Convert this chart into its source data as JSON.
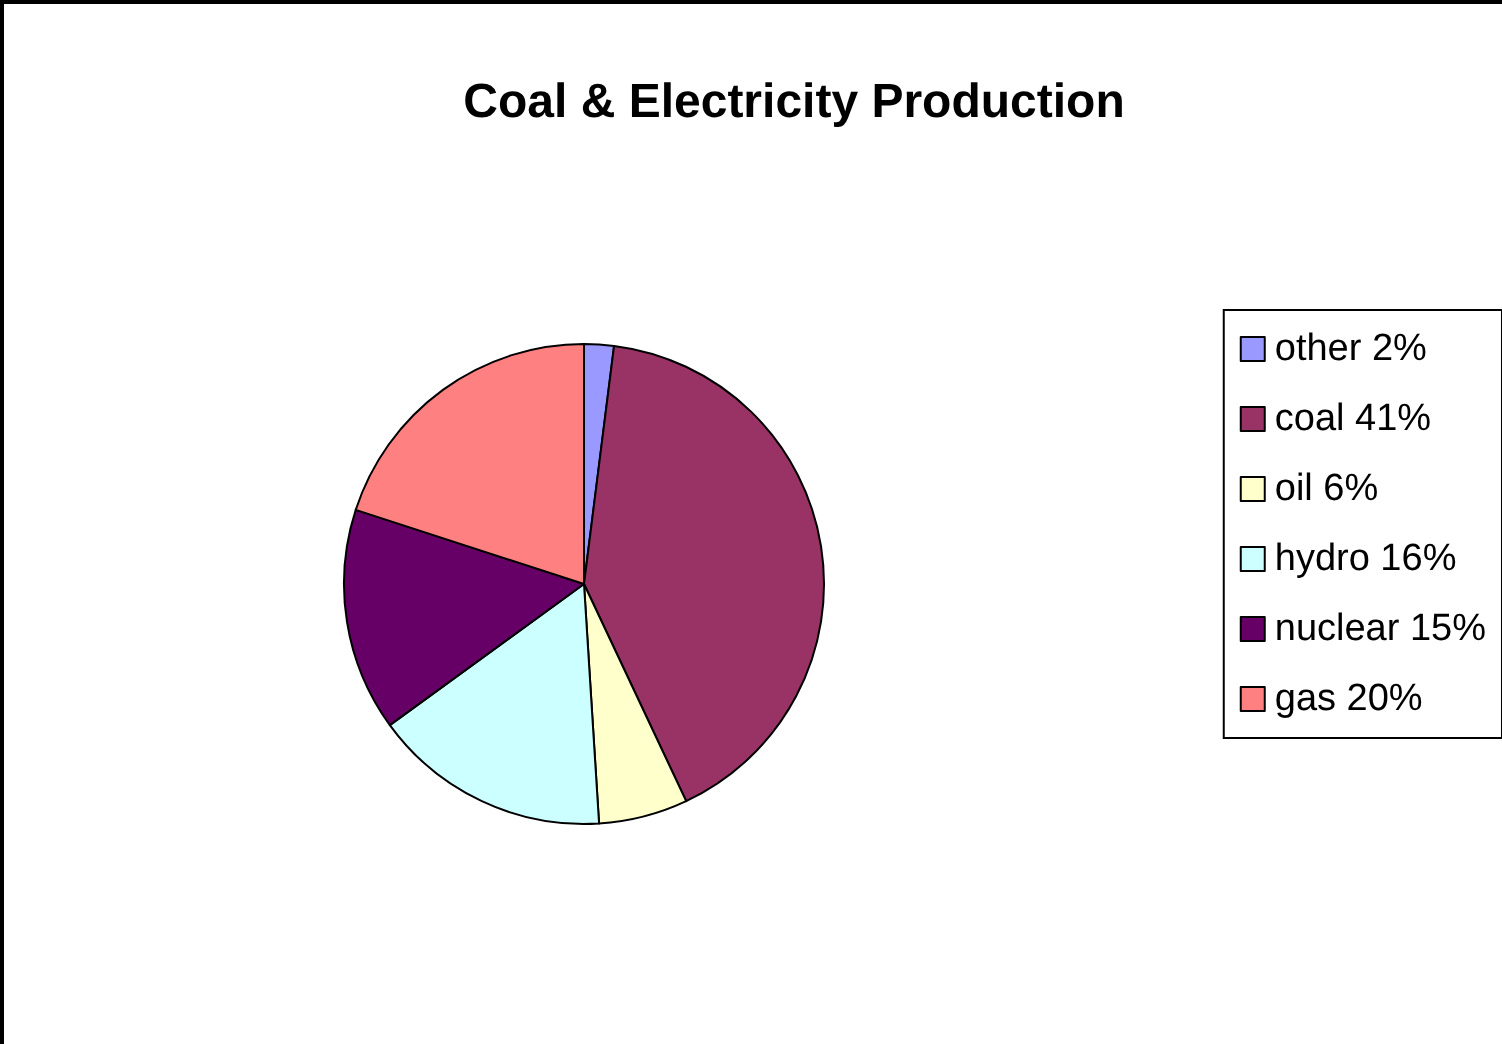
{
  "chart_data": {
    "type": "pie",
    "title": "Coal & Electricity Production",
    "categories": [
      "other 2%",
      "coal 41%",
      "oil 6%",
      "hydro 16%",
      "nuclear 15%",
      "gas 20%"
    ],
    "values": [
      2,
      41,
      6,
      16,
      15,
      20
    ],
    "colors": [
      "#9999ff",
      "#993366",
      "#ffffcc",
      "#ccffff",
      "#660066",
      "#ff8080"
    ],
    "legend": "right"
  }
}
